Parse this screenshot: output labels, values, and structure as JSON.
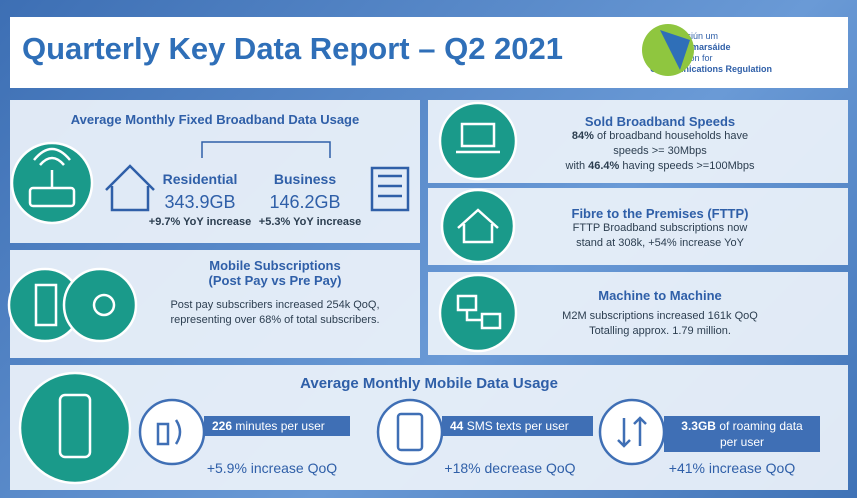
{
  "header": {
    "title": "Quarterly Key Data Report – Q2 2021",
    "logo": [
      "An Coimisiún um",
      "Rialáil Cumarsáide",
      "Commission for",
      "Communications Regulation"
    ]
  },
  "fixed_broadband": {
    "title": "Average Monthly Fixed Broadband Data Usage",
    "residential": {
      "label": "Residential",
      "value": "343.9GB",
      "change": "+9.7% YoY increase"
    },
    "business": {
      "label": "Business",
      "value": "146.2GB",
      "change": "+5.3% YoY increase"
    }
  },
  "mobile_subscriptions": {
    "title": [
      "Mobile Subscriptions",
      "(Post Pay vs Pre Pay)"
    ],
    "text": [
      "Post pay subscribers increased 254k QoQ,",
      "representing over 68% of total subscribers."
    ]
  },
  "sold_speeds": {
    "title": "Sold Broadband Speeds",
    "line1_bold": "84%",
    "line1": "of broadband households have",
    "line2": "speeds >= 30Mbps",
    "line3_pre": "with",
    "line3_bold": "46.4%",
    "line3_post": "having speeds >=100Mbps"
  },
  "fttp": {
    "title": "Fibre to the Premises (FTTP)",
    "text": [
      "FTTP Broadband subscriptions now",
      "stand at 308k, +54% increase YoY"
    ]
  },
  "m2m": {
    "title": "Machine to Machine",
    "text": [
      "M2M subscriptions increased 161k QoQ",
      "Totalling approx. 1.79 million."
    ]
  },
  "mobile_data": {
    "title": "Average Monthly Mobile Data Usage",
    "items": [
      {
        "value": "226",
        "text": "minutes per user",
        "change": "+5.9% increase QoQ"
      },
      {
        "value": "44",
        "text": "SMS texts per user",
        "change": "+18% decrease QoQ"
      },
      {
        "value": "3.3GB",
        "text": "of roaming data per user",
        "change": "+41% increase QoQ"
      }
    ]
  }
}
